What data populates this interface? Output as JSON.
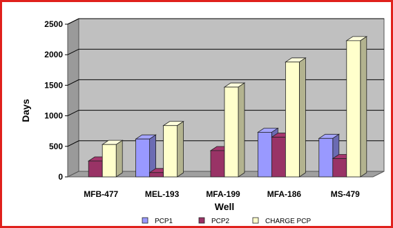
{
  "chart_data": {
    "type": "bar",
    "title": "",
    "xlabel": "Well",
    "ylabel": "Days",
    "ylim": [
      0,
      2500
    ],
    "yticks": [
      0,
      500,
      1000,
      1500,
      2000,
      2500
    ],
    "categories": [
      "MFB-477",
      "MEL-193",
      "MFA-199",
      "MFA-186",
      "MS-479"
    ],
    "series": [
      {
        "name": "PCP1",
        "values": [
          0,
          620,
          0,
          730,
          630
        ],
        "color": "#9999ff"
      },
      {
        "name": "PCP2",
        "values": [
          260,
          70,
          430,
          650,
          300
        ],
        "color": "#993366"
      },
      {
        "name": "CHARGE PCP",
        "values": [
          530,
          840,
          1470,
          1880,
          2230
        ],
        "color": "#ffffcc"
      }
    ],
    "grid": true,
    "legend_position": "bottom",
    "style": "3d-clustered-column",
    "wall_color": "#c0c0c0",
    "frame_color": "#e0201c"
  }
}
